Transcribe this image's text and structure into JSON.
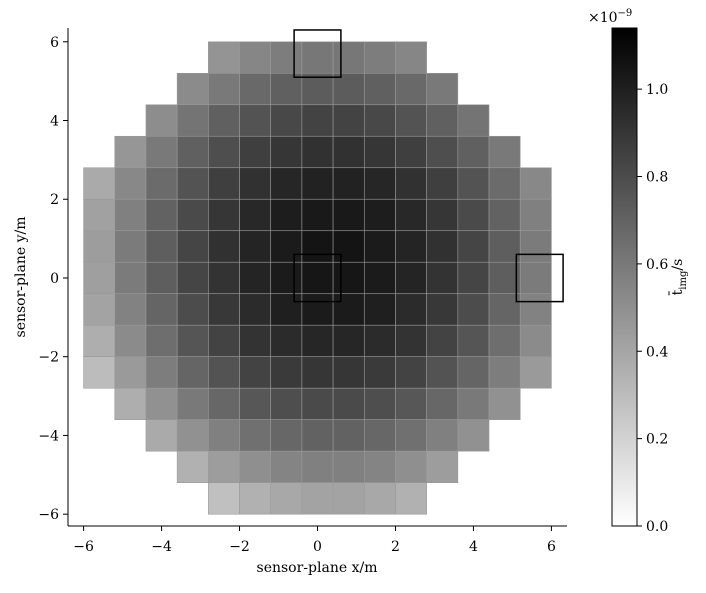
{
  "chart_data": {
    "type": "heatmap",
    "xlabel": "sensor-plane x/m",
    "ylabel": "sensor-plane y/m",
    "x": [
      -5.6,
      -4.8,
      -4.0,
      -3.2,
      -2.4,
      -1.6,
      -0.8,
      0,
      0.8,
      1.6,
      2.4,
      3.2,
      4.0,
      4.8,
      5.6
    ],
    "y": [
      5.6,
      4.8,
      4.0,
      3.2,
      2.4,
      1.6,
      0.8,
      0,
      -0.8,
      -1.6,
      -2.4,
      -3.2,
      -4.0,
      -4.8,
      -5.6
    ],
    "values": [
      [
        null,
        null,
        null,
        null,
        0.48,
        0.54,
        0.58,
        0.61,
        0.61,
        0.58,
        0.54,
        null,
        null,
        null,
        null
      ],
      [
        null,
        null,
        null,
        0.52,
        0.6,
        0.67,
        0.71,
        0.73,
        0.73,
        0.71,
        0.67,
        0.6,
        null,
        null,
        null
      ],
      [
        null,
        null,
        0.51,
        0.62,
        0.71,
        0.77,
        0.82,
        0.84,
        0.84,
        0.82,
        0.77,
        0.71,
        0.62,
        null,
        null
      ],
      [
        null,
        0.47,
        0.6,
        0.71,
        0.79,
        0.86,
        0.9,
        0.92,
        0.92,
        0.9,
        0.86,
        0.79,
        0.71,
        0.6,
        null
      ],
      [
        0.38,
        0.53,
        0.66,
        0.77,
        0.86,
        0.92,
        0.97,
        0.99,
        0.99,
        0.97,
        0.92,
        0.86,
        0.77,
        0.66,
        0.53
      ],
      [
        0.42,
        0.57,
        0.7,
        0.81,
        0.9,
        0.96,
        1.01,
        1.03,
        1.03,
        1.01,
        0.96,
        0.9,
        0.81,
        0.7,
        0.57
      ],
      [
        0.44,
        0.59,
        0.72,
        0.83,
        0.92,
        0.98,
        1.02,
        1.05,
        1.05,
        1.02,
        0.98,
        0.92,
        0.83,
        0.72,
        0.59
      ],
      [
        0.43,
        0.59,
        0.72,
        0.83,
        0.91,
        0.98,
        1.02,
        1.04,
        1.04,
        1.02,
        0.98,
        0.91,
        0.83,
        0.72,
        0.59
      ],
      [
        0.41,
        0.56,
        0.69,
        0.8,
        0.89,
        0.95,
        1.0,
        1.02,
        1.02,
        1.0,
        0.95,
        0.89,
        0.8,
        0.69,
        0.56
      ],
      [
        0.36,
        0.52,
        0.65,
        0.76,
        0.84,
        0.91,
        0.95,
        0.97,
        0.97,
        0.95,
        0.91,
        0.84,
        0.76,
        0.65,
        0.52
      ],
      [
        0.3,
        0.45,
        0.58,
        0.69,
        0.77,
        0.84,
        0.88,
        0.9,
        0.9,
        0.88,
        0.84,
        0.77,
        0.69,
        0.58,
        0.45
      ],
      [
        null,
        0.36,
        0.49,
        0.6,
        0.68,
        0.75,
        0.79,
        0.81,
        0.81,
        0.79,
        0.75,
        0.68,
        0.6,
        0.49,
        null
      ],
      [
        null,
        null,
        0.38,
        0.49,
        0.57,
        0.64,
        0.68,
        0.7,
        0.7,
        0.68,
        0.64,
        0.57,
        0.49,
        null,
        null
      ],
      [
        null,
        null,
        null,
        0.35,
        0.44,
        0.5,
        0.55,
        0.57,
        0.57,
        0.55,
        0.5,
        0.44,
        null,
        null,
        null
      ],
      [
        null,
        null,
        null,
        null,
        0.28,
        0.35,
        0.39,
        0.41,
        0.41,
        0.39,
        0.35,
        null,
        null,
        null,
        null
      ]
    ],
    "xlim": [
      -6.4,
      6.4
    ],
    "ylim": [
      -6.3,
      6.35
    ],
    "xticks": [
      {
        "value": -6,
        "label": "−6"
      },
      {
        "value": -4,
        "label": "−4"
      },
      {
        "value": -2,
        "label": "−2"
      },
      0,
      2,
      4,
      6
    ],
    "yticks": [
      {
        "value": -6,
        "label": "−6"
      },
      {
        "value": -4,
        "label": "−4"
      },
      {
        "value": -2,
        "label": "−2"
      },
      0,
      2,
      4,
      6
    ],
    "highlight_boxes": [
      {
        "xlim": [
          -0.6,
          0.6
        ],
        "ylim": [
          5.1,
          6.3
        ]
      },
      {
        "xlim": [
          -0.6,
          0.6
        ],
        "ylim": [
          -0.6,
          0.6
        ]
      },
      {
        "xlim": [
          5.1,
          6.3
        ],
        "ylim": [
          -0.6,
          0.6
        ]
      }
    ],
    "colorbar": {
      "clim": [
        0,
        1.14
      ],
      "ticks": [
        {
          "value": 0,
          "label": "0.0"
        },
        0.2,
        0.4,
        0.6,
        0.8,
        {
          "value": 1,
          "label": "1.0"
        }
      ],
      "label": {
        "symbol": "t̄",
        "subscript": "img",
        "unit": "/s"
      },
      "offset": {
        "base": "×10",
        "exponent": "−9"
      },
      "colormap": [
        "#ffffff",
        "#000000"
      ]
    }
  }
}
